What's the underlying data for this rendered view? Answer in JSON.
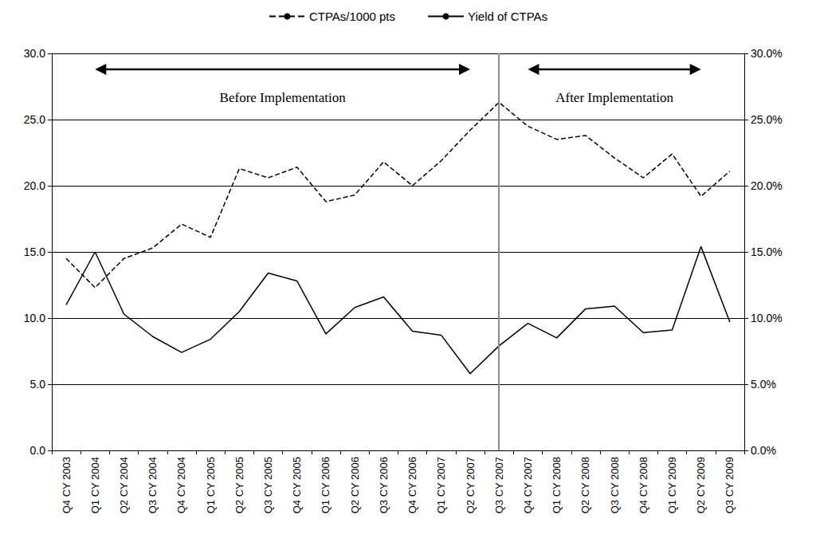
{
  "chart_data": {
    "type": "line",
    "categories": [
      "Q4 CY 2003",
      "Q1 CY 2004",
      "Q2 CY 2004",
      "Q3 CY 2004",
      "Q4 CY 2004",
      "Q1 CY 2005",
      "Q2 CY 2005",
      "Q3 CY 2005",
      "Q4 CY 2005",
      "Q1 CY 2006",
      "Q2 CY 2006",
      "Q3 CY 2006",
      "Q4 CY 2006",
      "Q1 CY 2007",
      "Q2 CY 2007",
      "Q3 CY 2007",
      "Q4 CY 2007",
      "Q1 CY 2008",
      "Q2 CY 2008",
      "Q3 CY 2008",
      "Q4 CY 2008",
      "Q1 CY 2009",
      "Q2 CY 2009",
      "Q3 CY 2009"
    ],
    "series": [
      {
        "name": "CTPAs/1000 pts",
        "color": "#000000",
        "line_style": "dashed",
        "marker": "none",
        "values": [
          14.5,
          12.3,
          14.5,
          15.3,
          17.1,
          16.1,
          21.3,
          20.6,
          21.4,
          18.8,
          19.3,
          21.8,
          20.0,
          21.9,
          24.2,
          26.3,
          24.5,
          23.5,
          23.8,
          22.1,
          20.6,
          22.4,
          19.2,
          21.1
        ]
      },
      {
        "name": "Yield of CTPAs",
        "color": "#000000",
        "line_style": "solid",
        "marker": "none",
        "axis": "y2",
        "values": [
          11.0,
          15.0,
          10.3,
          8.6,
          7.4,
          8.4,
          10.5,
          13.4,
          12.8,
          8.8,
          10.8,
          11.6,
          9.0,
          8.7,
          5.8,
          7.9,
          9.6,
          8.5,
          10.7,
          10.9,
          8.9,
          9.1,
          15.4,
          9.7
        ]
      }
    ],
    "ylim": [
      0,
      30
    ],
    "yticks": [
      {
        "value": 0,
        "label": "0.0"
      },
      {
        "value": 5,
        "label": "5.0"
      },
      {
        "value": 10,
        "label": "10.0"
      },
      {
        "value": 15,
        "label": "15.0"
      },
      {
        "value": 20,
        "label": "20.0"
      },
      {
        "value": 25,
        "label": "25.0"
      },
      {
        "value": 30,
        "label": "30.0"
      }
    ],
    "y2lim": [
      0,
      30
    ],
    "y2ticks": [
      {
        "value": 0,
        "label": "0.0%"
      },
      {
        "value": 5,
        "label": "5.0%"
      },
      {
        "value": 10,
        "label": "10.0%"
      },
      {
        "value": 15,
        "label": "15.0%"
      },
      {
        "value": 20,
        "label": "20.0%"
      },
      {
        "value": 25,
        "label": "25.0%"
      },
      {
        "value": 30,
        "label": "30.0%"
      }
    ],
    "grid": true,
    "legend": "top",
    "vertical_line": "Q3 CY 2007",
    "annotations": [
      {
        "text": "Before Implementation",
        "x_from": "Q1 CY 2004",
        "x_to": "Q2 CY 2007"
      },
      {
        "text": "After Implementation",
        "x_from": "Q4 CY 2007",
        "x_to": "Q2 CY 2009"
      }
    ]
  }
}
